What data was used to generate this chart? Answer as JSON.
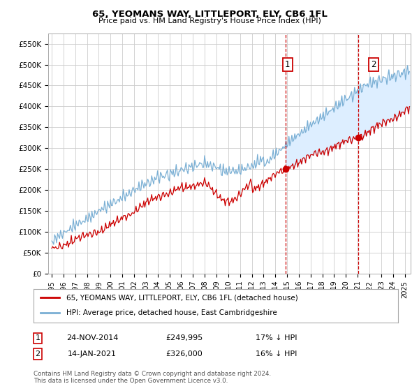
{
  "title1": "65, YEOMANS WAY, LITTLEPORT, ELY, CB6 1FL",
  "title2": "Price paid vs. HM Land Registry's House Price Index (HPI)",
  "ylim": [
    0,
    575000
  ],
  "yticks": [
    0,
    50000,
    100000,
    150000,
    200000,
    250000,
    300000,
    350000,
    400000,
    450000,
    500000,
    550000
  ],
  "ytick_labels": [
    "£0",
    "£50K",
    "£100K",
    "£150K",
    "£200K",
    "£250K",
    "£300K",
    "£350K",
    "£400K",
    "£450K",
    "£500K",
    "£550K"
  ],
  "xlim_start": 1994.7,
  "xlim_end": 2025.5,
  "marker1_x": 2014.9,
  "marker1_y": 249995,
  "marker1_date": "24-NOV-2014",
  "marker1_price": "£249,995",
  "marker1_hpi": "17% ↓ HPI",
  "marker2_x": 2021.04,
  "marker2_y": 326000,
  "marker2_date": "14-JAN-2021",
  "marker2_price": "£326,000",
  "marker2_hpi": "16% ↓ HPI",
  "red_color": "#cc0000",
  "blue_color": "#7aafd4",
  "fill_color": "#ddeeff",
  "grid_color": "#cccccc",
  "legend_line1": "65, YEOMANS WAY, LITTLEPORT, ELY, CB6 1FL (detached house)",
  "legend_line2": "HPI: Average price, detached house, East Cambridgeshire",
  "footnote": "Contains HM Land Registry data © Crown copyright and database right 2024.\nThis data is licensed under the Open Government Licence v3.0.",
  "background_color": "#ffffff"
}
